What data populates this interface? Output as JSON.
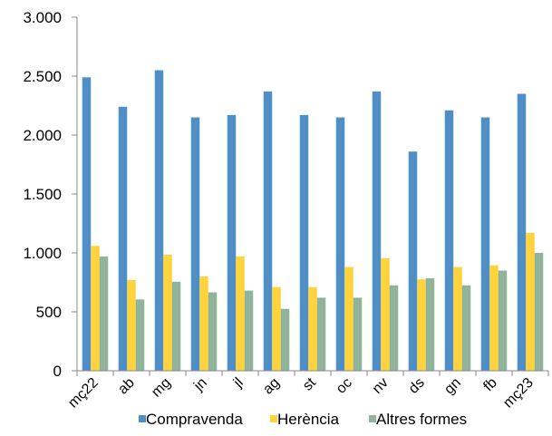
{
  "chart_data": {
    "type": "bar",
    "categories": [
      "mç22",
      "ab",
      "mg",
      "jn",
      "jl",
      "ag",
      "st",
      "oc",
      "nv",
      "ds",
      "gn",
      "fb",
      "mç23"
    ],
    "series": [
      {
        "name": "Compravenda",
        "color": "#4f8fc6",
        "values": [
          2490,
          2240,
          2550,
          2150,
          2170,
          2370,
          2170,
          2150,
          2370,
          1860,
          2210,
          2150,
          2350
        ]
      },
      {
        "name": "Herència",
        "color": "#ffd33d",
        "values": [
          1060,
          770,
          985,
          800,
          970,
          710,
          710,
          880,
          955,
          775,
          880,
          895,
          1170
        ]
      },
      {
        "name": "Altres formes",
        "color": "#8fb49a",
        "values": [
          970,
          605,
          755,
          665,
          680,
          525,
          620,
          620,
          725,
          785,
          725,
          850,
          1000
        ]
      }
    ],
    "ylim": [
      0,
      3000
    ],
    "yticks": [
      0,
      500,
      1000,
      1500,
      2000,
      2500,
      3000
    ],
    "ytick_labels": [
      "0",
      "500",
      "1.000",
      "1.500",
      "2.000",
      "2.500",
      "3.000"
    ],
    "legend": "bottom",
    "grid": false
  }
}
